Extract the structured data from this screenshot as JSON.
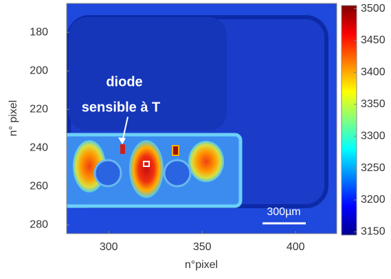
{
  "chart_data": {
    "type": "image",
    "xlabel": "n°pixel",
    "ylabel": "n° pixel",
    "xlim": [
      277.5,
      422
    ],
    "xticks": [
      300,
      350,
      400
    ],
    "ylim": [
      165,
      284.5
    ],
    "yticks": [
      180,
      200,
      220,
      240,
      260,
      280
    ],
    "y_inverted": true,
    "colorbar": {
      "colormap": "jet",
      "clim": [
        3145,
        3505
      ],
      "ticks": [
        3150,
        3200,
        3250,
        3300,
        3350,
        3400,
        3450,
        3500
      ]
    },
    "annotations": [
      "diode",
      "sensible à T"
    ],
    "scale_bar": "300µm"
  }
}
